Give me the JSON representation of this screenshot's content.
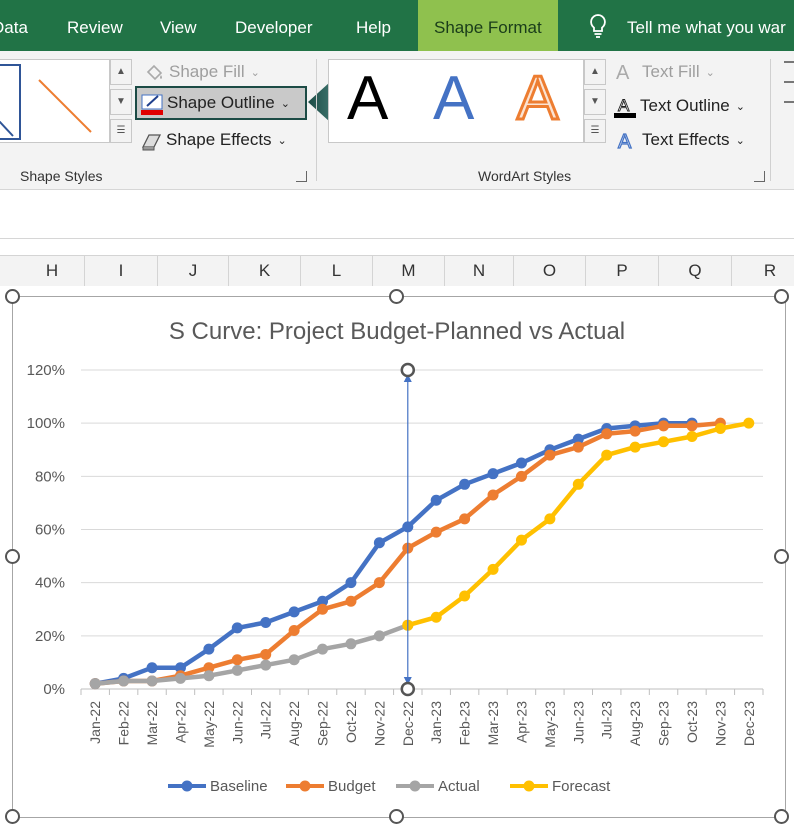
{
  "tabs": [
    {
      "label": "Data",
      "active": false
    },
    {
      "label": "Review",
      "active": false
    },
    {
      "label": "View",
      "active": false
    },
    {
      "label": "Developer",
      "active": false
    },
    {
      "label": "Help",
      "active": false
    },
    {
      "label": "Shape Format",
      "active": true
    }
  ],
  "tell_me": "Tell me what you war",
  "ribbon": {
    "shape_fill": "Shape Fill",
    "shape_outline": "Shape Outline",
    "shape_effects": "Shape Effects",
    "shape_styles_label": "Shape Styles",
    "wordart_label": "WordArt Styles",
    "wordart_letter": "A",
    "text_fill": "Text Fill",
    "text_outline": "Text Outline",
    "text_effects": "Text Effects"
  },
  "columns": [
    "H",
    "I",
    "J",
    "K",
    "L",
    "M",
    "N",
    "O",
    "P",
    "Q",
    "R"
  ],
  "colors": {
    "excel_green": "#217346",
    "active_tab": "#8fc14e",
    "baseline": "#4472c4",
    "budget": "#ed7d31",
    "actual": "#a5a5a5",
    "forecast": "#ffc000"
  },
  "chart_data": {
    "type": "line",
    "title": "S Curve: Project Budget-Planned vs Actual",
    "xlabel": "",
    "ylabel": "",
    "ylim": [
      0,
      120
    ],
    "yticks": [
      "0%",
      "20%",
      "40%",
      "60%",
      "80%",
      "100%",
      "120%"
    ],
    "categories": [
      "Jan-22",
      "Feb-22",
      "Mar-22",
      "Apr-22",
      "May-22",
      "Jun-22",
      "Jul-22",
      "Aug-22",
      "Sep-22",
      "Oct-22",
      "Nov-22",
      "Dec-22",
      "Jan-23",
      "Feb-23",
      "Mar-23",
      "Apr-23",
      "May-23",
      "Jun-23",
      "Jul-23",
      "Aug-23",
      "Sep-23",
      "Oct-23",
      "Nov-23",
      "Dec-23"
    ],
    "series": [
      {
        "name": "Baseline",
        "color": "#4472c4",
        "values": [
          2,
          4,
          8,
          8,
          15,
          23,
          25,
          29,
          33,
          40,
          55,
          61,
          71,
          77,
          81,
          85,
          90,
          94,
          98,
          99,
          100,
          100,
          null,
          null
        ]
      },
      {
        "name": "Budget",
        "color": "#ed7d31",
        "values": [
          2,
          3,
          3,
          5,
          8,
          11,
          13,
          22,
          30,
          33,
          40,
          53,
          59,
          64,
          73,
          80,
          88,
          91,
          96,
          97,
          99,
          99,
          100,
          null
        ]
      },
      {
        "name": "Actual",
        "color": "#a5a5a5",
        "values": [
          2,
          3,
          3,
          4,
          5,
          7,
          9,
          11,
          15,
          17,
          20,
          24,
          null,
          null,
          null,
          null,
          null,
          null,
          null,
          null,
          null,
          null,
          null,
          null
        ]
      },
      {
        "name": "Forecast",
        "color": "#ffc000",
        "values": [
          null,
          null,
          null,
          null,
          null,
          null,
          null,
          null,
          null,
          null,
          null,
          24,
          27,
          35,
          45,
          56,
          64,
          77,
          88,
          91,
          93,
          95,
          98,
          100
        ]
      }
    ],
    "vertical_marker_category": "Dec-22",
    "vertical_marker_range": [
      0,
      120
    ],
    "grid": true,
    "legend_position": "bottom"
  }
}
